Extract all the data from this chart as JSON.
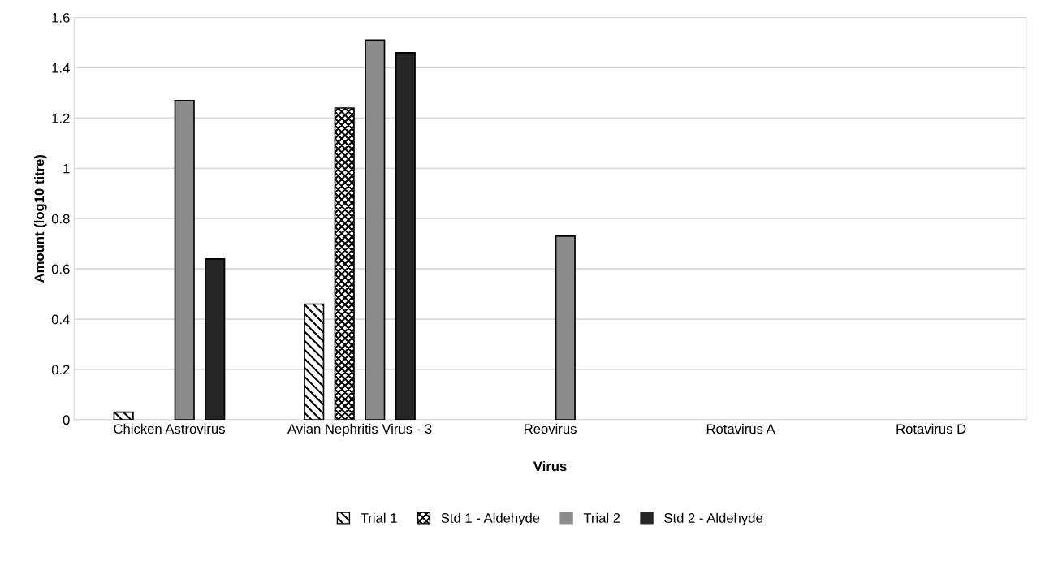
{
  "chart_data": {
    "type": "bar",
    "xlabel": "Virus",
    "ylabel": "Amount (log10 titre)",
    "categories": [
      "Chicken Astrovirus",
      "Avian Nephritis Virus - 3",
      "Reovirus",
      "Rotavirus A",
      "Rotavirus D"
    ],
    "series": [
      {
        "name": "Trial 1",
        "color": "#000000",
        "values": [
          0.03,
          0.46,
          0,
          0,
          0
        ]
      },
      {
        "name": "Std 1 - Aldehyde",
        "color": "#000000",
        "values": [
          0,
          1.24,
          0,
          0,
          0
        ]
      },
      {
        "name": "Trial 2",
        "color": "#8c8c8c",
        "values": [
          1.27,
          1.51,
          0.73,
          0,
          0
        ]
      },
      {
        "name": "Std 2 - Aldehyde",
        "color": "#262626",
        "values": [
          0.64,
          1.46,
          0,
          0,
          0
        ]
      }
    ],
    "ylim": [
      0,
      1.6
    ],
    "yticks": [
      0,
      {
        "value": 0.2,
        "label": "0.2"
      },
      {
        "value": 0.4,
        "label": "0.4"
      },
      {
        "value": 0.6,
        "label": "0.6"
      },
      {
        "value": 0.8,
        "label": "0.8"
      },
      1,
      {
        "value": 1.2,
        "label": "1.2"
      },
      {
        "value": 1.4,
        "label": "1.4"
      },
      {
        "value": 1.6,
        "label": "1.6"
      }
    ],
    "grid": "y",
    "legend": "bottom"
  }
}
